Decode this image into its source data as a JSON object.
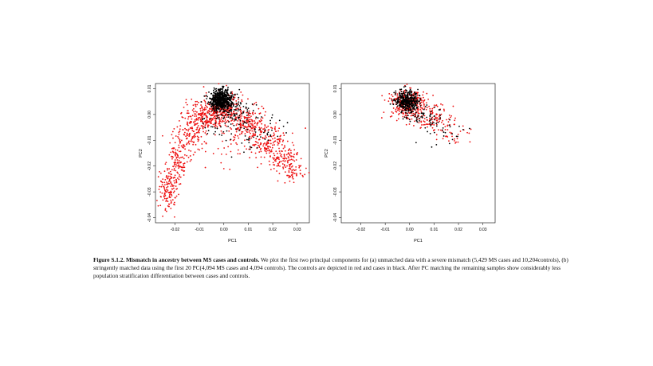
{
  "caption": {
    "label": "Figure S.1.2. Mismatch in ancestry between MS cases and controls.",
    "text": " We plot the first two principal components for (a) unmatched data with a severe mismatch (5,429 MS cases and 10,204controls), (b) stringently matched data using the first 20 PC(4,094 MS cases and 4,094 controls).  The controls are depicted in red and cases in black.  After PC matching the remaining samples show considerably less population stratification differentiation between cases and controls."
  },
  "colors": {
    "controls": "#ee1111",
    "cases": "#000000"
  },
  "chart_data": [
    {
      "type": "scatter",
      "xlabel": "PC1",
      "ylabel": "PC2",
      "xlim": [
        -0.028,
        0.035
      ],
      "ylim": [
        -0.042,
        0.012
      ],
      "x_ticks": [
        "-0.02",
        "-0.01",
        "0.00",
        "0.01",
        "0.02",
        "0.03"
      ],
      "x_tick_values": [
        -0.02,
        -0.01,
        0.0,
        0.01,
        0.02,
        0.03
      ],
      "y_ticks": [
        "0.01",
        "0.00",
        "-0.01",
        "-0.02",
        "-0.03",
        "-0.04"
      ],
      "y_tick_values": [
        0.01,
        0.0,
        -0.01,
        -0.02,
        -0.03,
        -0.04
      ],
      "grid": false,
      "series": [
        {
          "group": "controls",
          "color": "#ee1111",
          "density": [
            {
              "x": 0.0,
              "y": 0.002,
              "sx": 0.004,
              "sy": 0.003,
              "n": 260
            },
            {
              "x": -0.008,
              "y": -0.001,
              "sx": 0.004,
              "sy": 0.003,
              "n": 200
            },
            {
              "x": -0.014,
              "y": -0.008,
              "sx": 0.003,
              "sy": 0.004,
              "n": 110
            },
            {
              "x": -0.019,
              "y": -0.018,
              "sx": 0.002,
              "sy": 0.004,
              "n": 110
            },
            {
              "x": -0.023,
              "y": -0.029,
              "sx": 0.0018,
              "sy": 0.004,
              "n": 130
            },
            {
              "x": 0.01,
              "y": -0.004,
              "sx": 0.004,
              "sy": 0.003,
              "n": 170
            },
            {
              "x": 0.018,
              "y": -0.01,
              "sx": 0.003,
              "sy": 0.003,
              "n": 120
            },
            {
              "x": 0.024,
              "y": -0.017,
              "sx": 0.003,
              "sy": 0.003,
              "n": 110
            },
            {
              "x": 0.029,
              "y": -0.022,
              "sx": 0.002,
              "sy": 0.002,
              "n": 50
            },
            {
              "x": 0.005,
              "y": -0.009,
              "sx": 0.012,
              "sy": 0.006,
              "n": 80
            }
          ]
        },
        {
          "group": "cases",
          "color": "#000000",
          "density": [
            {
              "x": -0.001,
              "y": 0.0055,
              "sx": 0.0022,
              "sy": 0.002,
              "n": 650
            },
            {
              "x": 0.004,
              "y": 0.001,
              "sx": 0.004,
              "sy": 0.003,
              "n": 70
            },
            {
              "x": 0.012,
              "y": -0.006,
              "sx": 0.006,
              "sy": 0.004,
              "n": 60
            },
            {
              "x": -0.004,
              "y": -0.002,
              "sx": 0.005,
              "sy": 0.004,
              "n": 40
            }
          ]
        }
      ]
    },
    {
      "type": "scatter",
      "xlabel": "PC1",
      "ylabel": "PC2",
      "xlim": [
        -0.028,
        0.035
      ],
      "ylim": [
        -0.042,
        0.012
      ],
      "x_ticks": [
        "-0.02",
        "-0.01",
        "0.00",
        "0.01",
        "0.02",
        "0.03"
      ],
      "x_tick_values": [
        -0.02,
        -0.01,
        0.0,
        0.01,
        0.02,
        0.03
      ],
      "y_ticks": [
        "0.01",
        "0.00",
        "-0.01",
        "-0.02",
        "-0.03",
        "-0.04"
      ],
      "y_tick_values": [
        0.01,
        0.0,
        -0.01,
        -0.02,
        -0.03,
        -0.04
      ],
      "grid": false,
      "series": [
        {
          "group": "controls",
          "color": "#ee1111",
          "density": [
            {
              "x": -0.001,
              "y": 0.004,
              "sx": 0.0035,
              "sy": 0.0028,
              "n": 330
            },
            {
              "x": 0.007,
              "y": -0.001,
              "sx": 0.004,
              "sy": 0.003,
              "n": 90
            },
            {
              "x": 0.015,
              "y": -0.005,
              "sx": 0.004,
              "sy": 0.003,
              "n": 40
            },
            {
              "x": 0.02,
              "y": -0.009,
              "sx": 0.0025,
              "sy": 0.002,
              "n": 12
            }
          ]
        },
        {
          "group": "cases",
          "color": "#000000",
          "density": [
            {
              "x": -0.001,
              "y": 0.005,
              "sx": 0.0022,
              "sy": 0.002,
              "n": 380
            },
            {
              "x": 0.006,
              "y": -0.001,
              "sx": 0.004,
              "sy": 0.003,
              "n": 60
            },
            {
              "x": 0.013,
              "y": -0.005,
              "sx": 0.004,
              "sy": 0.003,
              "n": 25
            }
          ]
        }
      ]
    }
  ]
}
